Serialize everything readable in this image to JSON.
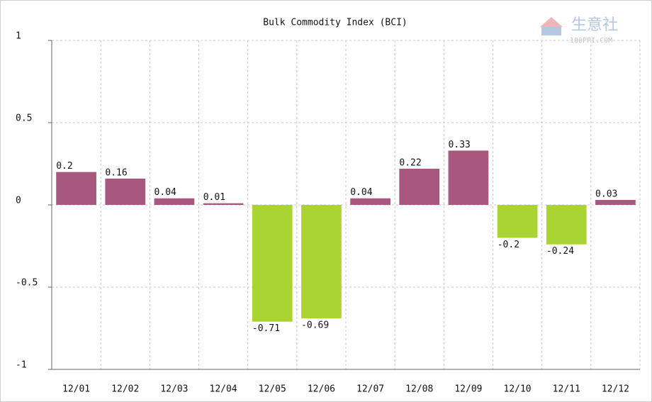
{
  "chart_data": {
    "type": "bar",
    "title": "Bulk Commodity Index (BCI)",
    "watermark_text": "生意社",
    "watermark_site": "100PPI.COM",
    "categories": [
      "12/01",
      "12/02",
      "12/03",
      "12/04",
      "12/05",
      "12/06",
      "12/07",
      "12/08",
      "12/09",
      "12/10",
      "12/11",
      "12/12"
    ],
    "values": [
      0.2,
      0.16,
      0.04,
      0.01,
      -0.71,
      -0.69,
      0.04,
      0.22,
      0.33,
      -0.2,
      -0.24,
      0.03
    ],
    "colors": {
      "positive": "#a8577f",
      "negative": "#a9d433"
    },
    "ylim": [
      -1,
      1
    ],
    "yticks": [
      -1,
      -0.5,
      0,
      0.5,
      1
    ],
    "grid": true
  }
}
